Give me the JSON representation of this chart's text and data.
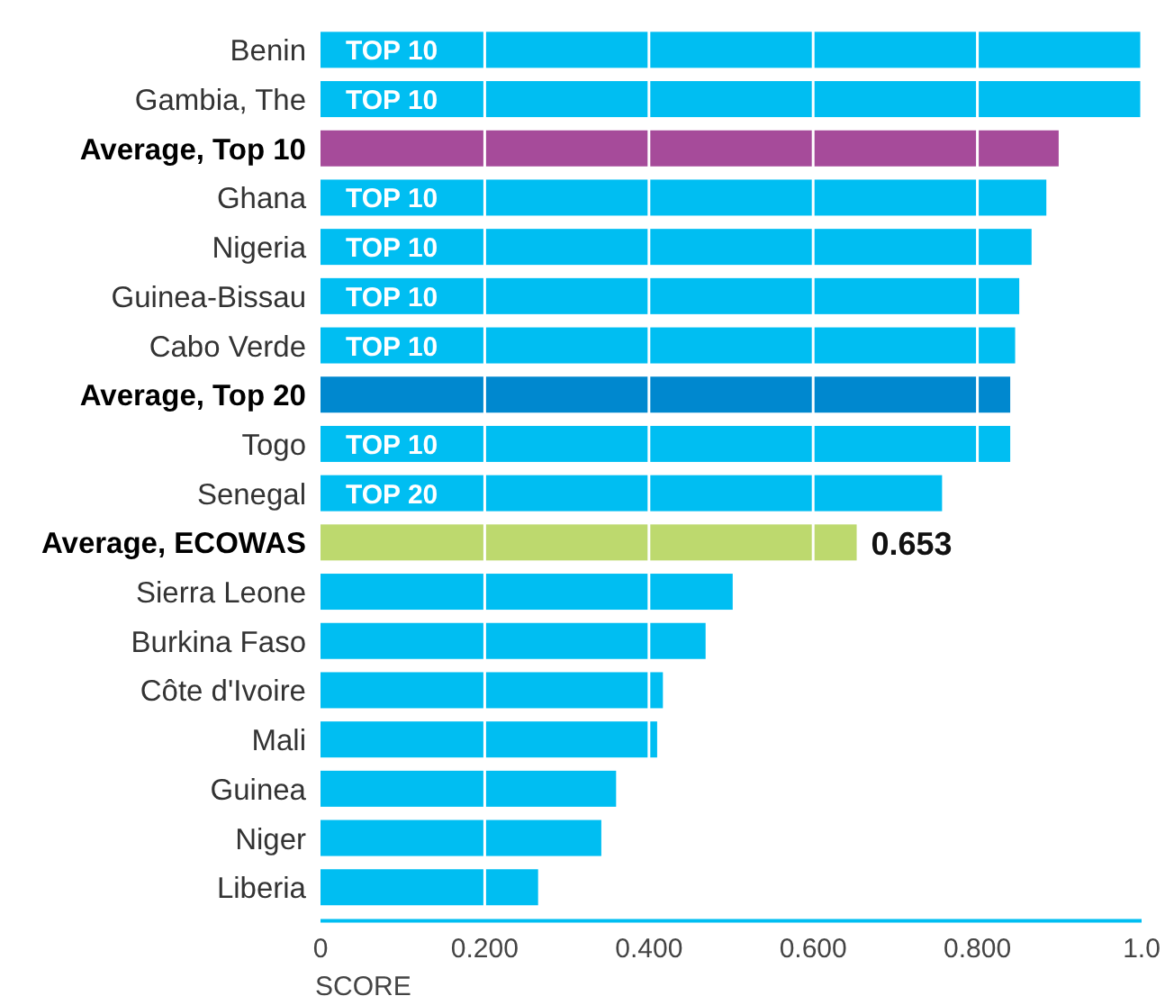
{
  "chart_data": {
    "type": "bar",
    "orientation": "horizontal",
    "xlabel": "SCORE",
    "categories": [
      "Benin",
      "Gambia, The",
      "Average, Top 10",
      "Ghana",
      "Nigeria",
      "Guinea-Bissau",
      "Cabo Verde",
      "Average, Top 20",
      "Togo",
      "Senegal",
      "Average, ECOWAS",
      "Sierra Leone",
      "Burkina Faso",
      "Côte d'Ivoire",
      "Mali",
      "Guinea",
      "Niger",
      "Liberia"
    ],
    "values": [
      1.0,
      1.0,
      0.899,
      0.884,
      0.866,
      0.851,
      0.846,
      0.84,
      0.84,
      0.757,
      0.653,
      0.502,
      0.469,
      0.417,
      0.41,
      0.36,
      0.342,
      0.265
    ],
    "colors": [
      "#00bef2",
      "#00bef2",
      "#a64b9a",
      "#00bef2",
      "#00bef2",
      "#00bef2",
      "#00bef2",
      "#0088cf",
      "#00bef2",
      "#00bef2",
      "#bdd96e",
      "#00bef2",
      "#00bef2",
      "#00bef2",
      "#00bef2",
      "#00bef2",
      "#00bef2",
      "#00bef2"
    ],
    "value_labels": [
      null,
      null,
      null,
      null,
      null,
      null,
      null,
      null,
      null,
      null,
      "0.653",
      null,
      null,
      null,
      null,
      null,
      null,
      null
    ],
    "xlim": [
      0,
      1
    ],
    "xticks": [
      0,
      {
        "value": 0.2,
        "label": "0.200"
      },
      {
        "value": 0.4,
        "label": "0.400"
      },
      {
        "value": 0.6,
        "label": "0.600"
      },
      {
        "value": 0.8,
        "label": "0.800"
      },
      {
        "value": 1,
        "label": "1.0"
      }
    ],
    "grid": "x",
    "annotations": [
      {
        "text": "TOP 10",
        "y": "Benin"
      },
      {
        "text": "TOP 10",
        "y": "Gambia, The"
      },
      {
        "text": "TOP 10",
        "y": "Ghana"
      },
      {
        "text": "TOP 10",
        "y": "Nigeria"
      },
      {
        "text": "TOP 10",
        "y": "Guinea-Bissau"
      },
      {
        "text": "TOP 10",
        "y": "Cabo Verde"
      },
      {
        "text": "TOP 10",
        "y": "Togo"
      },
      {
        "text": "TOP 20",
        "y": "Senegal"
      }
    ]
  }
}
